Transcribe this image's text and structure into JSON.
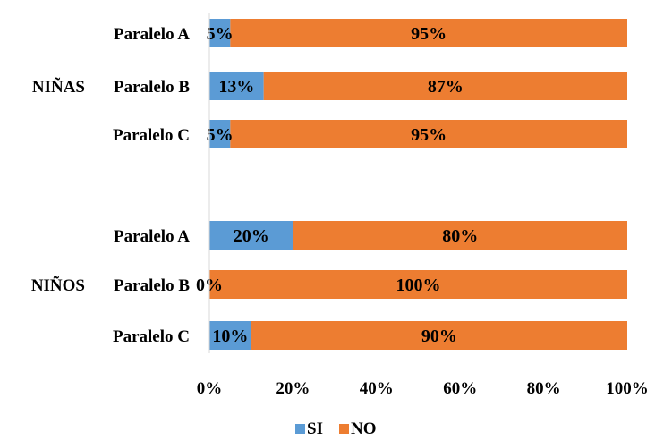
{
  "chart_data": {
    "type": "bar",
    "orientation": "horizontal",
    "stacked": "percent",
    "title": "",
    "xlabel": "",
    "ylabel": "",
    "xlim": [
      0,
      100
    ],
    "x_ticks": [
      "0%",
      "20%",
      "40%",
      "60%",
      "80%",
      "100%"
    ],
    "grid": false,
    "legend_position": "bottom",
    "groups": [
      {
        "name": "NIÑAS",
        "categories": [
          "Paralelo A",
          "Paralelo B",
          "Paralelo C"
        ],
        "SI": [
          5,
          13,
          5
        ],
        "NO": [
          95,
          87,
          95
        ]
      },
      {
        "name": "NIÑOS",
        "categories": [
          "Paralelo A",
          "Paralelo B",
          "Paralelo C"
        ],
        "SI": [
          20,
          0,
          10
        ],
        "NO": [
          80,
          100,
          90
        ]
      }
    ],
    "series": [
      {
        "name": "SI",
        "color": "#5b9bd5"
      },
      {
        "name": "NO",
        "color": "#ed7d31"
      }
    ],
    "data_label_color_si": "#44546a",
    "data_label_color_no": "#000000"
  }
}
